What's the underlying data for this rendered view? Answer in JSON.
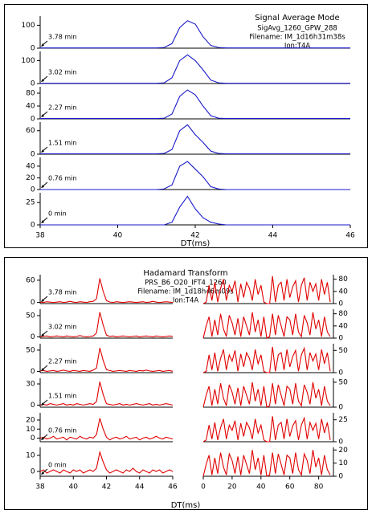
{
  "chart_data": [
    {
      "type": "line",
      "color": "#1a1acc",
      "annotations": [
        "Signal Average Mode",
        "SigAvg_1260_GPW_288",
        "Filename: IM_1d16h31m38s",
        "Ion:T4A"
      ],
      "xlabel": "DT(ms)",
      "xlim": [
        38,
        46
      ],
      "xticks": [
        38,
        40,
        42,
        44,
        46
      ],
      "x": [
        38,
        38.2,
        38.4,
        38.6,
        38.8,
        39,
        39.2,
        39.4,
        39.6,
        39.8,
        40,
        40.2,
        40.4,
        40.6,
        40.8,
        41,
        41.2,
        41.4,
        41.6,
        41.8,
        42,
        42.2,
        42.4,
        42.6,
        42.8,
        43,
        43.2,
        43.4,
        43.6,
        43.8,
        44,
        44.2,
        44.4,
        44.6,
        44.8,
        45,
        45.2,
        45.4,
        45.6,
        45.8,
        46
      ],
      "panels": [
        {
          "label": "3.78 min",
          "ylim": [
            0,
            140
          ],
          "yticks": [
            0,
            100
          ],
          "values": [
            1,
            1,
            1,
            1,
            1,
            1,
            1,
            1,
            1,
            1,
            1,
            1,
            1,
            1,
            1,
            1,
            3,
            20,
            90,
            120,
            105,
            50,
            12,
            3,
            1,
            1,
            1,
            1,
            1,
            1,
            1,
            1,
            1,
            1,
            1,
            1,
            1,
            1,
            1,
            1,
            1
          ]
        },
        {
          "label": "3.02 min",
          "ylim": [
            0,
            140
          ],
          "yticks": [
            0,
            100
          ],
          "values": [
            1,
            1,
            1,
            1,
            1,
            1,
            1,
            1,
            1,
            1,
            1,
            1,
            1,
            1,
            1,
            1,
            3,
            25,
            100,
            125,
            100,
            60,
            15,
            3,
            1,
            1,
            1,
            1,
            1,
            1,
            1,
            1,
            1,
            1,
            1,
            1,
            1,
            1,
            1,
            1,
            1
          ]
        },
        {
          "label": "2.27 min",
          "ylim": [
            0,
            100
          ],
          "yticks": [
            0,
            40,
            80
          ],
          "values": [
            1,
            1,
            1,
            1,
            1,
            1,
            1,
            1,
            1,
            1,
            1,
            1,
            1,
            1,
            1,
            1,
            2,
            15,
            70,
            90,
            75,
            40,
            10,
            2,
            1,
            1,
            1,
            1,
            1,
            1,
            1,
            1,
            1,
            1,
            1,
            1,
            1,
            1,
            1,
            1,
            1
          ]
        },
        {
          "label": "1.51 min",
          "ylim": [
            0,
            82
          ],
          "yticks": [
            0,
            60
          ],
          "values": [
            1,
            1,
            1,
            1,
            1,
            1,
            1,
            1,
            1,
            1,
            1,
            1,
            1,
            1,
            1,
            1,
            2,
            12,
            60,
            75,
            50,
            30,
            8,
            2,
            1,
            1,
            1,
            1,
            1,
            1,
            1,
            1,
            1,
            1,
            1,
            1,
            1,
            1,
            1,
            1,
            1
          ]
        },
        {
          "label": "0.76 min",
          "ylim": [
            0,
            55
          ],
          "yticks": [
            0,
            20,
            40
          ],
          "values": [
            0,
            0,
            0,
            0,
            0,
            0,
            0,
            0,
            0,
            0,
            0,
            0,
            0,
            0,
            0,
            0,
            1,
            8,
            40,
            48,
            35,
            22,
            5,
            1,
            0,
            0,
            0,
            0,
            0,
            0,
            0,
            0,
            0,
            0,
            0,
            0,
            0,
            0,
            0,
            0,
            0
          ]
        },
        {
          "label": "0 min",
          "ylim": [
            0,
            36
          ],
          "yticks": [
            0,
            25
          ],
          "values": [
            0,
            0,
            0,
            0,
            0,
            0,
            0,
            0,
            0,
            0,
            0,
            0,
            0,
            0,
            0,
            0,
            0,
            3,
            20,
            32,
            18,
            8,
            3,
            1,
            0,
            0,
            0,
            0,
            0,
            0,
            0,
            0,
            0,
            0,
            0,
            0,
            0,
            0,
            0,
            0,
            0
          ]
        }
      ]
    },
    {
      "type": "line",
      "color": "#e00000",
      "annotations": [
        "Hadamard Transform",
        "PRS_B6_O20_IFT4_1260",
        "Filename: IM_1d18h46m09s",
        "Ion:T4A"
      ],
      "xlabel": "DT(ms)",
      "xlim": [
        38,
        46
      ],
      "xticks": [
        38,
        40,
        42,
        44,
        46
      ],
      "x": [
        38,
        38.2,
        38.4,
        38.6,
        38.8,
        39,
        39.2,
        39.4,
        39.6,
        39.8,
        40,
        40.2,
        40.4,
        40.6,
        40.8,
        41,
        41.2,
        41.4,
        41.6,
        41.8,
        42,
        42.2,
        42.4,
        42.6,
        42.8,
        43,
        43.2,
        43.4,
        43.6,
        43.8,
        44,
        44.2,
        44.4,
        44.6,
        44.8,
        45,
        45.2,
        45.4,
        45.6,
        45.8,
        46
      ],
      "panels": [
        {
          "label": "3.78 min",
          "ylim": [
            -3,
            75
          ],
          "yticks": [
            0,
            60
          ],
          "values": [
            1,
            0,
            2,
            1,
            0,
            1,
            2,
            0,
            1,
            3,
            1,
            0,
            2,
            1,
            0,
            2,
            3,
            10,
            65,
            30,
            5,
            1,
            0,
            2,
            1,
            0,
            1,
            2,
            1,
            0,
            1,
            2,
            0,
            1,
            3,
            1,
            0,
            1,
            2,
            1,
            0
          ]
        },
        {
          "label": "3.02 min",
          "ylim": [
            -3,
            65
          ],
          "yticks": [
            0,
            50
          ],
          "values": [
            0,
            1,
            2,
            0,
            1,
            2,
            1,
            0,
            2,
            1,
            0,
            1,
            3,
            1,
            0,
            1,
            2,
            9,
            58,
            28,
            4,
            1,
            2,
            0,
            1,
            2,
            1,
            0,
            1,
            2,
            0,
            1,
            2,
            1,
            0,
            2,
            1,
            0,
            1,
            2,
            1
          ]
        },
        {
          "label": "2.27 min",
          "ylim": [
            -3,
            65
          ],
          "yticks": [
            0,
            50
          ],
          "values": [
            1,
            2,
            0,
            1,
            2,
            0,
            1,
            3,
            1,
            0,
            2,
            1,
            0,
            2,
            1,
            0,
            3,
            8,
            55,
            26,
            4,
            2,
            0,
            1,
            2,
            1,
            0,
            2,
            1,
            0,
            2,
            1,
            3,
            1,
            0,
            1,
            2,
            0,
            1,
            2,
            0
          ]
        },
        {
          "label": "1.51 min",
          "ylim": [
            -3,
            38
          ],
          "yticks": [
            0,
            30
          ],
          "values": [
            0,
            1,
            0,
            2,
            1,
            0,
            1,
            2,
            0,
            1,
            0,
            2,
            1,
            0,
            1,
            2,
            1,
            5,
            33,
            15,
            2,
            1,
            0,
            1,
            2,
            0,
            1,
            0,
            1,
            2,
            1,
            0,
            1,
            2,
            0,
            1,
            0,
            1,
            2,
            1,
            0
          ]
        },
        {
          "label": "0.76 min",
          "ylim": [
            -4,
            28
          ],
          "yticks": [
            0,
            10,
            20
          ],
          "values": [
            0,
            1,
            -1,
            0,
            2,
            -1,
            0,
            1,
            -2,
            1,
            0,
            -1,
            2,
            0,
            -1,
            1,
            0,
            4,
            22,
            10,
            1,
            -2,
            0,
            1,
            -1,
            0,
            2,
            -1,
            0,
            1,
            -2,
            0,
            1,
            -1,
            0,
            2,
            0,
            -1,
            1,
            0,
            -1
          ]
        },
        {
          "label": "0 min",
          "ylim": [
            -3,
            15
          ],
          "yticks": [
            0,
            10
          ],
          "values": [
            0,
            1,
            -1,
            0,
            1,
            0,
            -1,
            1,
            0,
            -1,
            1,
            0,
            1,
            -1,
            0,
            1,
            0,
            2,
            12,
            6,
            1,
            -1,
            0,
            1,
            0,
            -1,
            1,
            0,
            2,
            0,
            -1,
            1,
            0,
            -1,
            1,
            0,
            1,
            -1,
            0,
            1,
            0
          ]
        }
      ],
      "right": {
        "xlim": [
          0,
          88
        ],
        "xticks": [
          0,
          20,
          40,
          60,
          80
        ],
        "x": [
          0,
          2,
          4,
          6,
          8,
          10,
          12,
          14,
          16,
          18,
          20,
          22,
          24,
          26,
          28,
          30,
          32,
          34,
          36,
          38,
          40,
          42,
          44,
          46,
          48,
          50,
          52,
          54,
          56,
          58,
          60,
          62,
          64,
          66,
          68,
          70,
          72,
          74,
          76,
          78,
          80,
          82,
          84,
          86,
          88
        ],
        "panels": [
          {
            "y2lim": [
              0,
              95
            ],
            "y2ticks": [
              0,
              40,
              80
            ],
            "values": [
              0,
              5,
              60,
              10,
              70,
              5,
              50,
              80,
              10,
              60,
              40,
              75,
              5,
              65,
              20,
              70,
              50,
              10,
              80,
              30,
              60,
              5,
              0,
              0,
              90,
              5,
              60,
              70,
              10,
              80,
              20,
              55,
              75,
              5,
              60,
              85,
              10,
              70,
              40,
              65,
              10,
              80,
              30,
              70,
              5
            ]
          },
          {
            "y2lim": [
              0,
              95
            ],
            "y2ticks": [
              0,
              40,
              80
            ],
            "values": [
              0,
              40,
              70,
              5,
              60,
              10,
              80,
              30,
              5,
              75,
              50,
              10,
              65,
              5,
              70,
              40,
              10,
              85,
              20,
              60,
              5,
              70,
              0,
              5,
              80,
              10,
              75,
              40,
              5,
              70,
              60,
              10,
              80,
              20,
              5,
              75,
              50,
              10,
              85,
              30,
              60,
              5,
              70,
              20,
              5
            ]
          },
          {
            "y2lim": [
              0,
              65
            ],
            "y2ticks": [
              0,
              50
            ],
            "values": [
              0,
              3,
              40,
              6,
              45,
              3,
              32,
              52,
              6,
              40,
              26,
              50,
              3,
              42,
              13,
              45,
              32,
              6,
              52,
              20,
              40,
              3,
              0,
              0,
              58,
              3,
              40,
              45,
              6,
              52,
              13,
              36,
              50,
              3,
              40,
              55,
              6,
              45,
              26,
              42,
              6,
              52,
              20,
              45,
              3
            ]
          },
          {
            "y2lim": [
              0,
              58
            ],
            "y2ticks": [
              0,
              50
            ],
            "values": [
              0,
              24,
              42,
              3,
              36,
              6,
              48,
              18,
              3,
              45,
              30,
              6,
              39,
              3,
              42,
              24,
              6,
              50,
              12,
              36,
              3,
              42,
              0,
              3,
              48,
              6,
              45,
              24,
              3,
              42,
              36,
              6,
              48,
              12,
              3,
              45,
              30,
              6,
              50,
              18,
              36,
              3,
              42,
              12,
              3
            ]
          },
          {
            "y2lim": [
              0,
              33
            ],
            "y2ticks": [
              0,
              25
            ],
            "values": [
              0,
              2,
              19,
              3,
              22,
              2,
              16,
              26,
              3,
              19,
              13,
              24,
              2,
              21,
              6,
              22,
              16,
              3,
              26,
              10,
              19,
              2,
              0,
              0,
              29,
              2,
              19,
              22,
              3,
              26,
              6,
              18,
              24,
              2,
              19,
              27,
              3,
              22,
              13,
              21,
              3,
              26,
              10,
              22,
              2
            ]
          },
          {
            "y2lim": [
              0,
              22
            ],
            "y2ticks": [
              0,
              10,
              20
            ],
            "values": [
              0,
              9,
              16,
              1,
              14,
              2,
              18,
              7,
              1,
              17,
              12,
              2,
              15,
              1,
              16,
              9,
              2,
              20,
              5,
              14,
              1,
              16,
              0,
              1,
              18,
              2,
              17,
              9,
              1,
              16,
              14,
              2,
              18,
              5,
              1,
              17,
              12,
              2,
              20,
              7,
              14,
              1,
              16,
              5,
              1
            ]
          }
        ]
      }
    }
  ]
}
